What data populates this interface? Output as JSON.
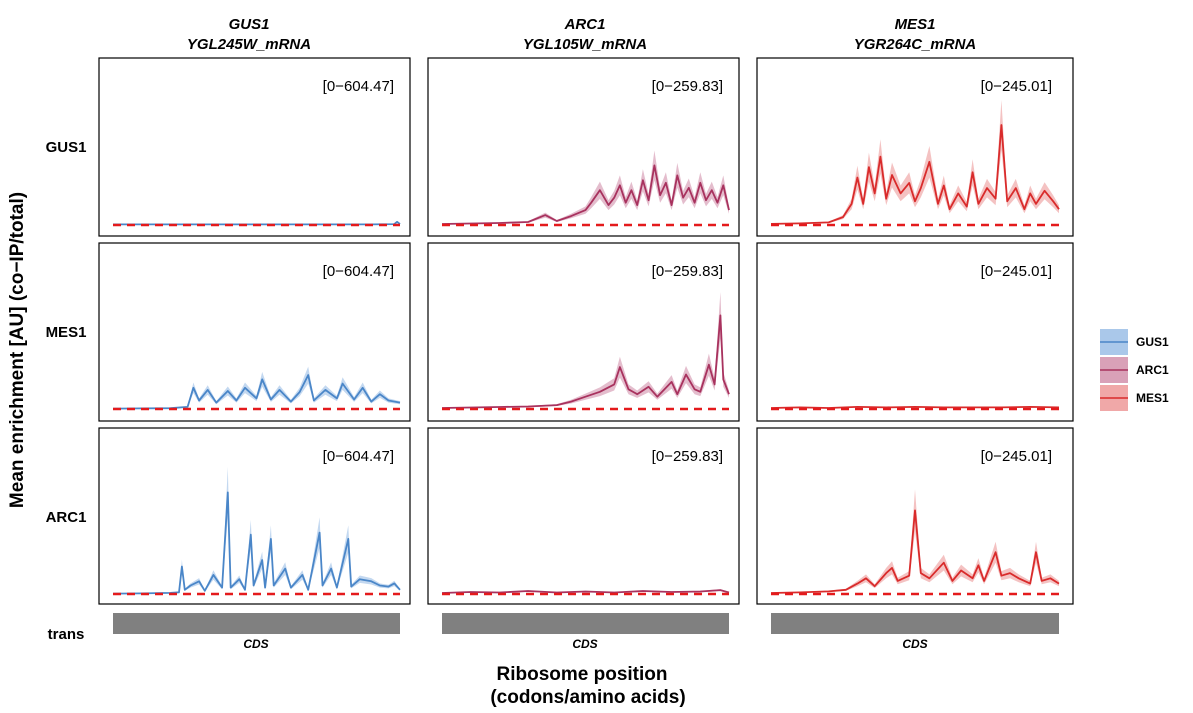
{
  "chart_data": {
    "type": "line",
    "y_axis_title": "Mean enrichment [AU] (co−IP/total)",
    "x_axis_title_line1": "Ribosome position",
    "x_axis_title_line2": "(codons/amino acids)",
    "columns": [
      {
        "protein": "GUS1",
        "mrna": "YGL245W_mRNA",
        "range_label": "[0−604.47]",
        "ymax": 604.47,
        "cds_label": "CDS"
      },
      {
        "protein": "ARC1",
        "mrna": "YGL105W_mRNA",
        "range_label": "[0−259.83]",
        "ymax": 259.83,
        "cds_label": "CDS"
      },
      {
        "protein": "MES1",
        "mrna": "YGR264C_mRNA",
        "range_label": "[0−245.01]",
        "ymax": 245.01,
        "cds_label": "CDS"
      }
    ],
    "rows": [
      "GUS1",
      "MES1",
      "ARC1"
    ],
    "trans_label": "trans",
    "legend": [
      {
        "label": "GUS1",
        "color": "#4a86c8",
        "band": "#aac8ea"
      },
      {
        "label": "ARC1",
        "color": "#a8325e",
        "band": "#d9a1b8"
      },
      {
        "label": "MES1",
        "color": "#d92b2b",
        "band": "#f0a8a8"
      }
    ],
    "reference_line_color": "#e41a1c",
    "x_range": [
      0,
      1
    ],
    "panels": [
      {
        "row": "GUS1",
        "col": "GUS1",
        "series": "GUS1",
        "points": [
          [
            0,
            3
          ],
          [
            0.1,
            3
          ],
          [
            0.2,
            3
          ],
          [
            0.3,
            3
          ],
          [
            0.4,
            3
          ],
          [
            0.5,
            3
          ],
          [
            0.6,
            3
          ],
          [
            0.7,
            3
          ],
          [
            0.8,
            3
          ],
          [
            0.9,
            3
          ],
          [
            0.98,
            4
          ],
          [
            0.99,
            15
          ],
          [
            1,
            4
          ]
        ]
      },
      {
        "row": "GUS1",
        "col": "ARC1",
        "series": "ARC1",
        "points": [
          [
            0,
            2
          ],
          [
            0.1,
            3
          ],
          [
            0.2,
            4
          ],
          [
            0.3,
            6
          ],
          [
            0.36,
            20
          ],
          [
            0.4,
            8
          ],
          [
            0.45,
            18
          ],
          [
            0.5,
            30
          ],
          [
            0.52,
            45
          ],
          [
            0.55,
            70
          ],
          [
            0.58,
            40
          ],
          [
            0.6,
            55
          ],
          [
            0.62,
            80
          ],
          [
            0.64,
            45
          ],
          [
            0.66,
            70
          ],
          [
            0.68,
            40
          ],
          [
            0.7,
            90
          ],
          [
            0.72,
            50
          ],
          [
            0.74,
            120
          ],
          [
            0.76,
            60
          ],
          [
            0.78,
            85
          ],
          [
            0.8,
            40
          ],
          [
            0.82,
            100
          ],
          [
            0.84,
            55
          ],
          [
            0.86,
            75
          ],
          [
            0.88,
            45
          ],
          [
            0.9,
            85
          ],
          [
            0.92,
            50
          ],
          [
            0.94,
            70
          ],
          [
            0.96,
            45
          ],
          [
            0.98,
            80
          ],
          [
            1,
            30
          ]
        ]
      },
      {
        "row": "GUS1",
        "col": "MES1",
        "series": "MES1",
        "points": [
          [
            0,
            2
          ],
          [
            0.1,
            3
          ],
          [
            0.2,
            5
          ],
          [
            0.25,
            15
          ],
          [
            0.28,
            40
          ],
          [
            0.3,
            90
          ],
          [
            0.32,
            40
          ],
          [
            0.34,
            110
          ],
          [
            0.36,
            60
          ],
          [
            0.38,
            130
          ],
          [
            0.4,
            50
          ],
          [
            0.42,
            95
          ],
          [
            0.45,
            60
          ],
          [
            0.48,
            80
          ],
          [
            0.5,
            45
          ],
          [
            0.52,
            70
          ],
          [
            0.55,
            120
          ],
          [
            0.58,
            40
          ],
          [
            0.6,
            75
          ],
          [
            0.62,
            30
          ],
          [
            0.65,
            60
          ],
          [
            0.68,
            35
          ],
          [
            0.7,
            100
          ],
          [
            0.72,
            40
          ],
          [
            0.75,
            70
          ],
          [
            0.78,
            50
          ],
          [
            0.8,
            190
          ],
          [
            0.82,
            45
          ],
          [
            0.85,
            70
          ],
          [
            0.88,
            30
          ],
          [
            0.9,
            60
          ],
          [
            0.92,
            40
          ],
          [
            0.95,
            65
          ],
          [
            0.98,
            45
          ],
          [
            1,
            30
          ]
        ]
      },
      {
        "row": "MES1",
        "col": "GUS1",
        "series": "GUS1",
        "points": [
          [
            0,
            2
          ],
          [
            0.1,
            3
          ],
          [
            0.2,
            4
          ],
          [
            0.26,
            10
          ],
          [
            0.28,
            100
          ],
          [
            0.3,
            40
          ],
          [
            0.33,
            90
          ],
          [
            0.36,
            30
          ],
          [
            0.4,
            85
          ],
          [
            0.43,
            40
          ],
          [
            0.46,
            100
          ],
          [
            0.5,
            50
          ],
          [
            0.52,
            140
          ],
          [
            0.55,
            45
          ],
          [
            0.58,
            90
          ],
          [
            0.62,
            35
          ],
          [
            0.65,
            80
          ],
          [
            0.68,
            160
          ],
          [
            0.7,
            40
          ],
          [
            0.74,
            90
          ],
          [
            0.78,
            50
          ],
          [
            0.8,
            120
          ],
          [
            0.84,
            45
          ],
          [
            0.87,
            100
          ],
          [
            0.9,
            35
          ],
          [
            0.93,
            70
          ],
          [
            0.96,
            40
          ],
          [
            1,
            30
          ]
        ]
      },
      {
        "row": "MES1",
        "col": "ARC1",
        "series": "ARC1",
        "points": [
          [
            0,
            2
          ],
          [
            0.1,
            3
          ],
          [
            0.2,
            4
          ],
          [
            0.3,
            5
          ],
          [
            0.4,
            8
          ],
          [
            0.45,
            15
          ],
          [
            0.5,
            25
          ],
          [
            0.55,
            35
          ],
          [
            0.6,
            50
          ],
          [
            0.62,
            85
          ],
          [
            0.65,
            40
          ],
          [
            0.68,
            30
          ],
          [
            0.72,
            45
          ],
          [
            0.75,
            25
          ],
          [
            0.8,
            55
          ],
          [
            0.82,
            30
          ],
          [
            0.85,
            70
          ],
          [
            0.88,
            40
          ],
          [
            0.9,
            35
          ],
          [
            0.93,
            90
          ],
          [
            0.95,
            50
          ],
          [
            0.97,
            190
          ],
          [
            0.98,
            60
          ],
          [
            1,
            30
          ]
        ]
      },
      {
        "row": "MES1",
        "col": "MES1",
        "series": "MES1",
        "points": [
          [
            0,
            2
          ],
          [
            0.1,
            3
          ],
          [
            0.2,
            2
          ],
          [
            0.3,
            4
          ],
          [
            0.4,
            3
          ],
          [
            0.5,
            4
          ],
          [
            0.6,
            3
          ],
          [
            0.7,
            3
          ],
          [
            0.8,
            3
          ],
          [
            0.9,
            4
          ],
          [
            1,
            3
          ]
        ]
      },
      {
        "row": "ARC1",
        "col": "GUS1",
        "series": "GUS1",
        "points": [
          [
            0,
            2
          ],
          [
            0.1,
            3
          ],
          [
            0.2,
            5
          ],
          [
            0.23,
            8
          ],
          [
            0.24,
            130
          ],
          [
            0.25,
            20
          ],
          [
            0.27,
            40
          ],
          [
            0.3,
            60
          ],
          [
            0.32,
            15
          ],
          [
            0.35,
            90
          ],
          [
            0.38,
            30
          ],
          [
            0.4,
            480
          ],
          [
            0.41,
            30
          ],
          [
            0.44,
            70
          ],
          [
            0.46,
            20
          ],
          [
            0.48,
            280
          ],
          [
            0.49,
            40
          ],
          [
            0.52,
            160
          ],
          [
            0.53,
            30
          ],
          [
            0.55,
            260
          ],
          [
            0.56,
            40
          ],
          [
            0.6,
            120
          ],
          [
            0.62,
            30
          ],
          [
            0.66,
            90
          ],
          [
            0.68,
            20
          ],
          [
            0.72,
            290
          ],
          [
            0.73,
            40
          ],
          [
            0.76,
            120
          ],
          [
            0.78,
            30
          ],
          [
            0.82,
            260
          ],
          [
            0.83,
            35
          ],
          [
            0.86,
            70
          ],
          [
            0.9,
            60
          ],
          [
            0.93,
            40
          ],
          [
            0.96,
            35
          ],
          [
            0.98,
            50
          ],
          [
            1,
            20
          ]
        ]
      },
      {
        "row": "ARC1",
        "col": "ARC1",
        "series": "ARC1",
        "points": [
          [
            0,
            2
          ],
          [
            0.1,
            4
          ],
          [
            0.2,
            3
          ],
          [
            0.3,
            6
          ],
          [
            0.4,
            3
          ],
          [
            0.5,
            5
          ],
          [
            0.6,
            3
          ],
          [
            0.7,
            6
          ],
          [
            0.8,
            4
          ],
          [
            0.9,
            5
          ],
          [
            0.97,
            8
          ],
          [
            1,
            3
          ]
        ]
      },
      {
        "row": "ARC1",
        "col": "MES1",
        "series": "MES1",
        "points": [
          [
            0,
            2
          ],
          [
            0.1,
            3
          ],
          [
            0.2,
            5
          ],
          [
            0.26,
            8
          ],
          [
            0.3,
            20
          ],
          [
            0.33,
            30
          ],
          [
            0.36,
            15
          ],
          [
            0.4,
            40
          ],
          [
            0.42,
            50
          ],
          [
            0.44,
            25
          ],
          [
            0.48,
            35
          ],
          [
            0.5,
            160
          ],
          [
            0.52,
            40
          ],
          [
            0.55,
            30
          ],
          [
            0.6,
            60
          ],
          [
            0.63,
            25
          ],
          [
            0.66,
            45
          ],
          [
            0.7,
            30
          ],
          [
            0.72,
            55
          ],
          [
            0.74,
            25
          ],
          [
            0.78,
            80
          ],
          [
            0.8,
            35
          ],
          [
            0.83,
            40
          ],
          [
            0.86,
            30
          ],
          [
            0.9,
            20
          ],
          [
            0.92,
            80
          ],
          [
            0.94,
            25
          ],
          [
            0.97,
            30
          ],
          [
            1,
            20
          ]
        ]
      }
    ]
  }
}
